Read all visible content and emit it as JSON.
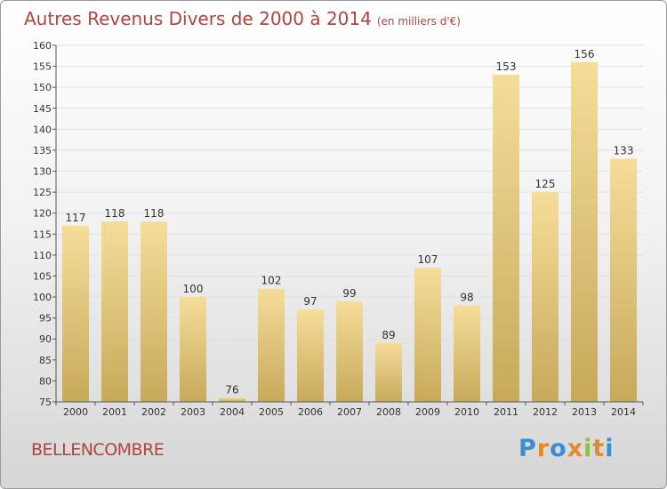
{
  "header": {
    "title": "Autres Revenus Divers de 2000 à 2014",
    "unit": "(en milliers d'€)"
  },
  "footer": {
    "place": "BELLENCOMBRE",
    "logo_text": "Proxiti",
    "logo_colors": [
      "#3a8fd0",
      "#e4892c",
      "#3a8fd0",
      "#e4892c",
      "#8cc04a",
      "#e4892c",
      "#3a8fd0"
    ]
  },
  "colors": {
    "title": "#b0443f",
    "bar_light": "#f5dd9a",
    "bar_dark": "#c7a95a",
    "axis": "#555555",
    "grid": "#e2e2e2"
  },
  "chart_data": {
    "type": "bar",
    "categories": [
      "2000",
      "2001",
      "2002",
      "2003",
      "2004",
      "2005",
      "2006",
      "2007",
      "2008",
      "2009",
      "2010",
      "2011",
      "2012",
      "2013",
      "2014"
    ],
    "values": [
      117,
      118,
      118,
      100,
      76,
      102,
      97,
      99,
      89,
      107,
      98,
      153,
      125,
      156,
      133
    ],
    "title": "Autres Revenus Divers de 2000 à 2014",
    "ylim": [
      75,
      160
    ],
    "yticks": [
      75,
      80,
      85,
      90,
      95,
      100,
      105,
      110,
      115,
      120,
      125,
      130,
      135,
      140,
      145,
      150,
      155,
      160
    ],
    "grid": true
  }
}
